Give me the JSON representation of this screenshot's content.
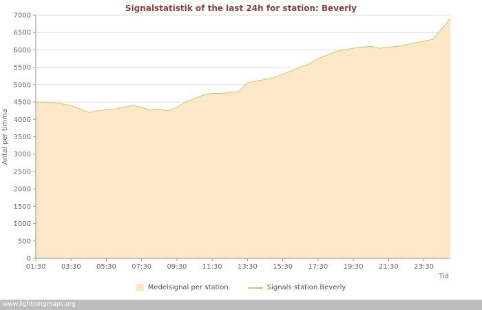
{
  "watermark": "www.lightningmaps.org",
  "chart_data": {
    "type": "area",
    "title": "Signalstatistik of the last 24h for station: Beverly",
    "xlabel": "Tid",
    "ylabel": "Antal per timma",
    "ylim": [
      0,
      7000
    ],
    "y_tick_step": 500,
    "grid": true,
    "legend_position": "bottom",
    "x_tick_labels": [
      "01:30",
      "03:30",
      "05:30",
      "07:30",
      "09:30",
      "11:30",
      "13:30",
      "15:30",
      "17:30",
      "19:30",
      "21:30",
      "23:30"
    ],
    "x": [
      "01:30",
      "02:00",
      "02:30",
      "03:00",
      "03:30",
      "04:00",
      "04:30",
      "05:00",
      "05:30",
      "06:00",
      "06:30",
      "07:00",
      "07:30",
      "08:00",
      "08:30",
      "09:00",
      "09:30",
      "10:00",
      "10:30",
      "11:00",
      "11:30",
      "12:00",
      "12:30",
      "13:00",
      "13:30",
      "14:00",
      "14:30",
      "15:00",
      "15:30",
      "16:00",
      "16:30",
      "17:00",
      "17:30",
      "18:00",
      "18:30",
      "19:00",
      "19:30",
      "20:00",
      "20:30",
      "21:00",
      "21:30",
      "22:00",
      "22:30",
      "23:00",
      "23:30",
      "00:00",
      "00:30",
      "01:00"
    ],
    "values": [
      4500,
      4500,
      4480,
      4450,
      4400,
      4300,
      4200,
      4250,
      4280,
      4300,
      4350,
      4400,
      4350,
      4270,
      4300,
      4250,
      4350,
      4500,
      4600,
      4700,
      4750,
      4750,
      4780,
      4800,
      5050,
      5100,
      5150,
      5200,
      5300,
      5400,
      5500,
      5600,
      5750,
      5850,
      5950,
      6000,
      6050,
      6080,
      6100,
      6050,
      6080,
      6100,
      6150,
      6200,
      6250,
      6300,
      6600,
      6900
    ],
    "series": [
      {
        "name": "Medelsignal per station",
        "type": "area"
      },
      {
        "name": "Signals station Beverly",
        "type": "line"
      }
    ],
    "legend": [
      {
        "label": "Medelsignal per station",
        "swatch": "area"
      },
      {
        "label": "Signals station Beverly",
        "swatch": "line"
      }
    ],
    "colors": {
      "area": "#fce8c6",
      "line": "#dcc452",
      "grid": "#dcdcdc",
      "axis": "#999999",
      "text": "#666666",
      "title": "#8f3f3f"
    }
  }
}
